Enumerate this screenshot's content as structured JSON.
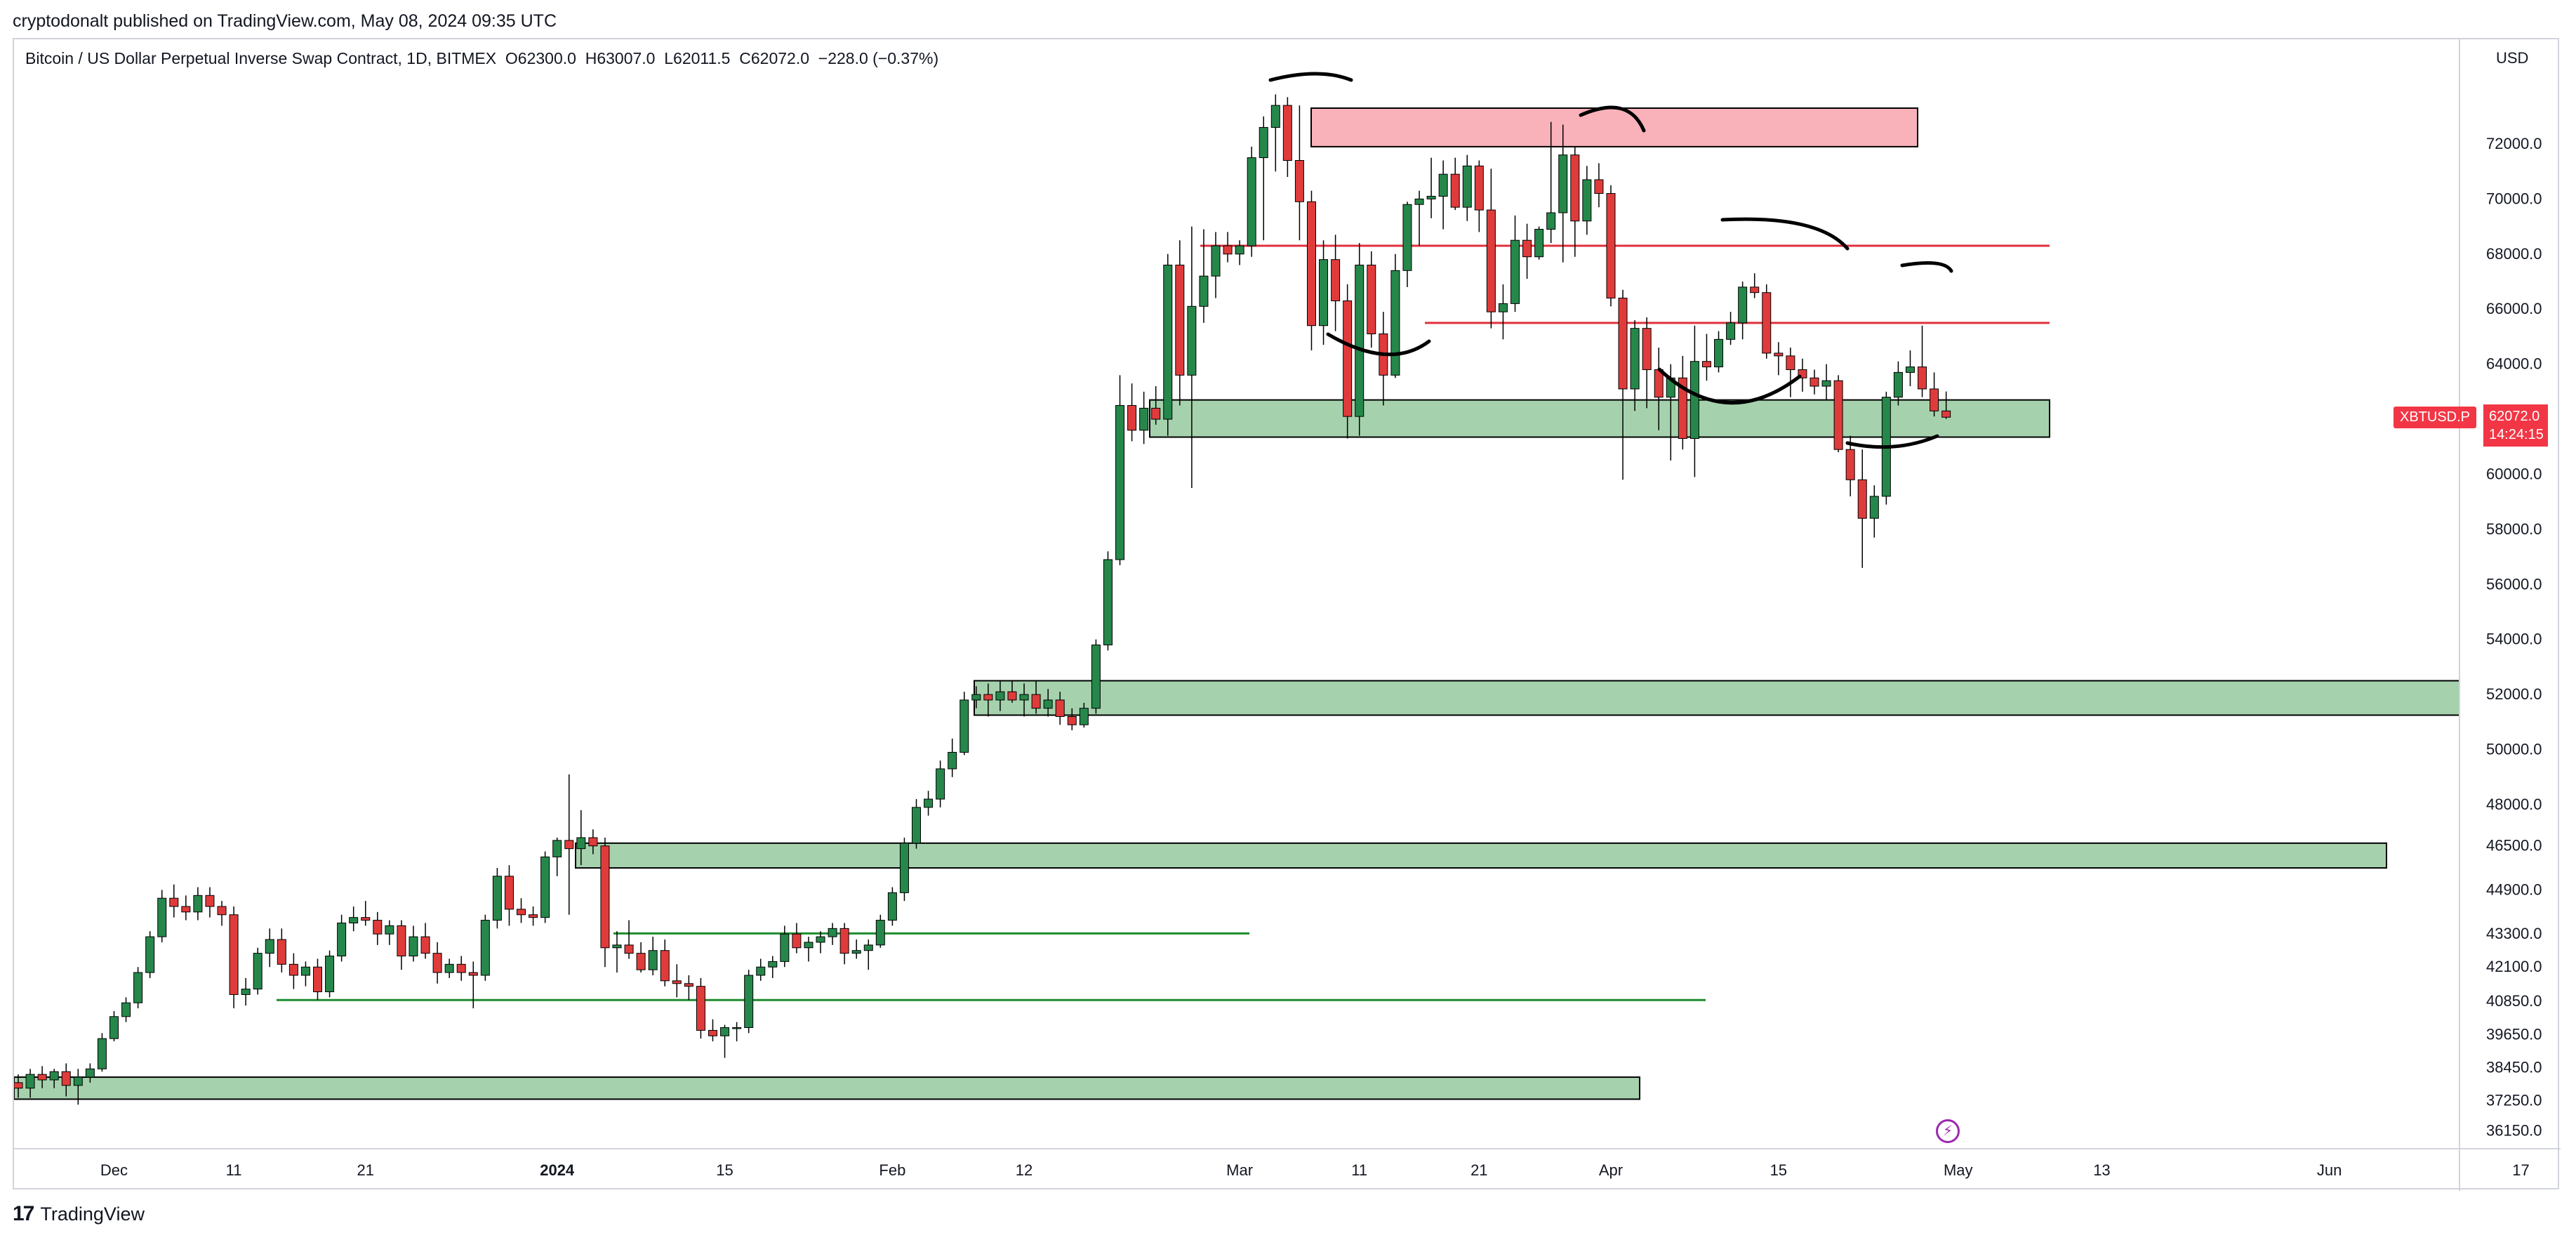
{
  "publisher_line": "cryptodonalt published on TradingView.com, May 08, 2024 09:35 UTC",
  "legend": {
    "symbol": "Bitcoin / US Dollar Perpetual Inverse Swap Contract, 1D, BITMEX",
    "open": "O62300.0",
    "high": "H63007.0",
    "low": "L62011.5",
    "close": "C62072.0",
    "change": "−228.0 (−0.37%)"
  },
  "currency_label": "USD",
  "ticker_tag": "XBTUSD.P",
  "price_tag": {
    "price": "62072.0",
    "countdown": "14:24:15"
  },
  "footer": {
    "logo": "17",
    "brand": "TradingView"
  },
  "colors": {
    "up": "#26874b",
    "down": "#e03b3b",
    "zone_green": "#a5d2ad",
    "zone_red": "#f9b2ba",
    "line_red": "#e0303d",
    "line_green": "#1e8c2e",
    "ink": "#000000"
  },
  "chart_data": {
    "type": "candlestick",
    "symbol": "XBTUSD.P",
    "timeframe": "1D",
    "ylim": [
      35500,
      75800
    ],
    "y_tick_labels": [
      "72000.0",
      "70000.0",
      "68000.0",
      "66000.0",
      "64000.0",
      "62000.0",
      "60000.0",
      "58000.0",
      "56000.0",
      "54000.0",
      "52000.0",
      "50000.0",
      "48000.0",
      "46500.0",
      "44900.0",
      "43300.0",
      "42100.0",
      "40850.0",
      "39650.0",
      "38450.0",
      "37250.0",
      "36150.0"
    ],
    "y_tick_values": [
      72000,
      70000,
      68000,
      66000,
      64000,
      62000,
      60000,
      58000,
      56000,
      54000,
      52000,
      50000,
      48000,
      46500,
      44900,
      43300,
      42100,
      40850,
      39650,
      38450,
      37250,
      36150
    ],
    "x_tick_labels": [
      "Dec",
      "11",
      "21",
      "2024",
      "15",
      "Feb",
      "12",
      "Mar",
      "11",
      "21",
      "Apr",
      "15",
      "May",
      "13",
      "Jun",
      "17"
    ],
    "x_tick_days": [
      8,
      18,
      29,
      45,
      59,
      73,
      84,
      102,
      112,
      122,
      133,
      147,
      162,
      174,
      193,
      209
    ],
    "ohlc": [
      [
        37900,
        38200,
        37350,
        37700
      ],
      [
        37700,
        38400,
        37350,
        38200
      ],
      [
        38200,
        38500,
        37700,
        38000
      ],
      [
        38000,
        38400,
        37700,
        38300
      ],
      [
        38300,
        38600,
        37400,
        37800
      ],
      [
        37800,
        38400,
        37100,
        38100
      ],
      [
        38100,
        38600,
        37900,
        38400
      ],
      [
        38400,
        39700,
        38300,
        39500
      ],
      [
        39500,
        40500,
        39400,
        40300
      ],
      [
        40300,
        41000,
        40100,
        40800
      ],
      [
        40800,
        42100,
        40600,
        41900
      ],
      [
        41900,
        43400,
        41700,
        43200
      ],
      [
        43200,
        44900,
        43000,
        44600
      ],
      [
        44600,
        45100,
        43900,
        44300
      ],
      [
        44300,
        44700,
        43800,
        44100
      ],
      [
        44100,
        45000,
        43800,
        44700
      ],
      [
        44700,
        45000,
        43900,
        44300
      ],
      [
        44300,
        44500,
        43600,
        44000
      ],
      [
        44000,
        44300,
        40600,
        41100
      ],
      [
        41100,
        41700,
        40700,
        41300
      ],
      [
        41300,
        42800,
        41100,
        42600
      ],
      [
        42600,
        43500,
        42100,
        43100
      ],
      [
        43100,
        43500,
        41900,
        42200
      ],
      [
        42200,
        42600,
        41300,
        41800
      ],
      [
        41800,
        42300,
        41400,
        42100
      ],
      [
        42100,
        42400,
        40900,
        41200
      ],
      [
        41200,
        42700,
        41000,
        42500
      ],
      [
        42500,
        44000,
        42300,
        43700
      ],
      [
        43700,
        44300,
        43400,
        43900
      ],
      [
        43900,
        44500,
        43600,
        43800
      ],
      [
        43800,
        44100,
        42900,
        43300
      ],
      [
        43300,
        43800,
        42900,
        43600
      ],
      [
        43600,
        43800,
        42000,
        42500
      ],
      [
        42500,
        43600,
        42300,
        43200
      ],
      [
        43200,
        43700,
        42400,
        42600
      ],
      [
        42600,
        43000,
        41500,
        41900
      ],
      [
        41900,
        42400,
        41700,
        42200
      ],
      [
        42200,
        42500,
        41600,
        41900
      ],
      [
        41900,
        42300,
        40600,
        41800
      ],
      [
        41800,
        44000,
        41600,
        43800
      ],
      [
        43800,
        45700,
        43500,
        45400
      ],
      [
        45400,
        45800,
        43600,
        44200
      ],
      [
        44200,
        44600,
        43700,
        44000
      ],
      [
        44000,
        44300,
        43600,
        43900
      ],
      [
        43900,
        46300,
        43700,
        46100
      ],
      [
        46100,
        46800,
        45400,
        46700
      ],
      [
        46700,
        49100,
        44000,
        46400
      ],
      [
        46400,
        47800,
        45800,
        46800
      ],
      [
        46800,
        47100,
        46200,
        46500
      ],
      [
        46500,
        46800,
        42100,
        42800
      ],
      [
        42800,
        43400,
        41900,
        42900
      ],
      [
        42900,
        43800,
        42400,
        42600
      ],
      [
        42600,
        43000,
        41900,
        42000
      ],
      [
        42000,
        43200,
        41800,
        42700
      ],
      [
        42700,
        43100,
        41400,
        41600
      ],
      [
        41600,
        42200,
        41000,
        41500
      ],
      [
        41500,
        41800,
        40900,
        41400
      ],
      [
        41400,
        41700,
        39500,
        39800
      ],
      [
        39800,
        40200,
        39400,
        39600
      ],
      [
        39600,
        40000,
        38800,
        39900
      ],
      [
        39900,
        40100,
        39400,
        39900
      ],
      [
        39900,
        42000,
        39700,
        41800
      ],
      [
        41800,
        42400,
        41600,
        42100
      ],
      [
        42100,
        42500,
        41700,
        42300
      ],
      [
        42300,
        43600,
        42100,
        43300
      ],
      [
        43300,
        43700,
        42600,
        42800
      ],
      [
        42800,
        43200,
        42300,
        43000
      ],
      [
        43000,
        43400,
        42600,
        43200
      ],
      [
        43200,
        43700,
        42900,
        43500
      ],
      [
        43500,
        43700,
        42200,
        42600
      ],
      [
        42600,
        43100,
        42400,
        42700
      ],
      [
        42700,
        43100,
        42000,
        42900
      ],
      [
        42900,
        44000,
        42800,
        43800
      ],
      [
        43800,
        45000,
        43600,
        44800
      ],
      [
        44800,
        46800,
        44500,
        46600
      ],
      [
        46600,
        48200,
        46400,
        47900
      ],
      [
        47900,
        48500,
        47600,
        48200
      ],
      [
        48200,
        49600,
        47900,
        49300
      ],
      [
        49300,
        50400,
        49000,
        49900
      ],
      [
        49900,
        52100,
        49800,
        51800
      ],
      [
        51800,
        52300,
        51500,
        52000
      ],
      [
        52000,
        52400,
        51200,
        51800
      ],
      [
        51800,
        52500,
        51400,
        52100
      ],
      [
        52100,
        52500,
        51700,
        51800
      ],
      [
        51800,
        52400,
        51200,
        52000
      ],
      [
        52000,
        52500,
        51300,
        51500
      ],
      [
        51500,
        52200,
        51200,
        51800
      ],
      [
        51800,
        52100,
        50900,
        51200
      ],
      [
        51200,
        51500,
        50700,
        50900
      ],
      [
        50900,
        51700,
        50800,
        51500
      ],
      [
        51500,
        54000,
        51300,
        53800
      ],
      [
        53800,
        57200,
        53600,
        56900
      ],
      [
        56900,
        63600,
        56700,
        62500
      ],
      [
        62500,
        63300,
        61200,
        61600
      ],
      [
        61600,
        63000,
        61100,
        62400
      ],
      [
        62400,
        63200,
        61800,
        62000
      ],
      [
        62000,
        68000,
        61400,
        67600
      ],
      [
        67600,
        68500,
        62500,
        63600
      ],
      [
        63600,
        69000,
        59500,
        66100
      ],
      [
        66100,
        68900,
        65500,
        67200
      ],
      [
        67200,
        68800,
        66400,
        68300
      ],
      [
        68300,
        68800,
        67700,
        68000
      ],
      [
        68000,
        68500,
        67600,
        68300
      ],
      [
        68300,
        71900,
        67900,
        71500
      ],
      [
        71500,
        73000,
        68500,
        72600
      ],
      [
        72600,
        73800,
        71000,
        73400
      ],
      [
        73400,
        73700,
        70800,
        71400
      ],
      [
        71400,
        73400,
        68500,
        69900
      ],
      [
        69900,
        70300,
        64500,
        65400
      ],
      [
        65400,
        68500,
        64700,
        67800
      ],
      [
        67800,
        68700,
        65200,
        66300
      ],
      [
        66300,
        66900,
        61300,
        62100
      ],
      [
        62100,
        68400,
        61400,
        67600
      ],
      [
        67600,
        68100,
        64600,
        65100
      ],
      [
        65100,
        65900,
        62500,
        63600
      ],
      [
        63600,
        68000,
        63500,
        67400
      ],
      [
        67400,
        69900,
        66800,
        69800
      ],
      [
        69800,
        70300,
        68300,
        70000
      ],
      [
        70000,
        71500,
        69300,
        70100
      ],
      [
        70100,
        71400,
        68900,
        70900
      ],
      [
        70900,
        71500,
        69600,
        69700
      ],
      [
        69700,
        71600,
        69200,
        71200
      ],
      [
        71200,
        71400,
        68800,
        69600
      ],
      [
        69600,
        71100,
        65300,
        65900
      ],
      [
        65900,
        66900,
        64900,
        66200
      ],
      [
        66200,
        69400,
        65900,
        68500
      ],
      [
        68500,
        69100,
        67100,
        67900
      ],
      [
        67900,
        69000,
        67800,
        68900
      ],
      [
        68900,
        72800,
        68400,
        69500
      ],
      [
        69500,
        72700,
        67700,
        71600
      ],
      [
        71600,
        71900,
        67900,
        69200
      ],
      [
        69200,
        71200,
        68700,
        70700
      ],
      [
        70700,
        71300,
        69700,
        70200
      ],
      [
        70200,
        70500,
        66100,
        66400
      ],
      [
        66400,
        66700,
        59800,
        63100
      ],
      [
        63100,
        65600,
        62300,
        65300
      ],
      [
        65300,
        65700,
        62400,
        63800
      ],
      [
        63800,
        64600,
        61600,
        62800
      ],
      [
        62800,
        64000,
        60500,
        63500
      ],
      [
        63500,
        64300,
        60900,
        61300
      ],
      [
        61300,
        65400,
        59900,
        64100
      ],
      [
        64100,
        65100,
        63400,
        63900
      ],
      [
        63900,
        65200,
        63700,
        64900
      ],
      [
        64900,
        65900,
        64700,
        65500
      ],
      [
        65500,
        67000,
        64900,
        66800
      ],
      [
        66800,
        67300,
        66400,
        66600
      ],
      [
        66600,
        66900,
        64200,
        64400
      ],
      [
        64400,
        64800,
        63600,
        64300
      ],
      [
        64300,
        64600,
        62800,
        63800
      ],
      [
        63800,
        64200,
        63000,
        63500
      ],
      [
        63500,
        63800,
        62900,
        63200
      ],
      [
        63200,
        64000,
        62700,
        63400
      ],
      [
        63400,
        63600,
        60800,
        60900
      ],
      [
        60900,
        61400,
        59200,
        59800
      ],
      [
        59800,
        60900,
        56600,
        58400
      ],
      [
        58400,
        59600,
        57700,
        59200
      ],
      [
        59200,
        63000,
        58900,
        62800
      ],
      [
        62800,
        64100,
        62500,
        63700
      ],
      [
        63700,
        64500,
        63200,
        63900
      ],
      [
        63900,
        65400,
        62800,
        63100
      ],
      [
        63100,
        63700,
        62100,
        62300
      ],
      [
        62300,
        63007,
        62011,
        62072
      ]
    ],
    "zones": [
      {
        "color": "red",
        "from": 71900,
        "to": 73300
      },
      {
        "color": "green",
        "from": 61350,
        "to": 62700
      },
      {
        "color": "green",
        "from": 51250,
        "to": 52500
      },
      {
        "color": "green",
        "from": 45700,
        "to": 46600
      },
      {
        "color": "green",
        "from": 37300,
        "to": 38100
      }
    ],
    "levels": [
      {
        "color": "red",
        "value": 68300
      },
      {
        "color": "red",
        "value": 65500
      },
      {
        "color": "green",
        "value": 43320
      },
      {
        "color": "green",
        "value": 40900
      }
    ]
  }
}
